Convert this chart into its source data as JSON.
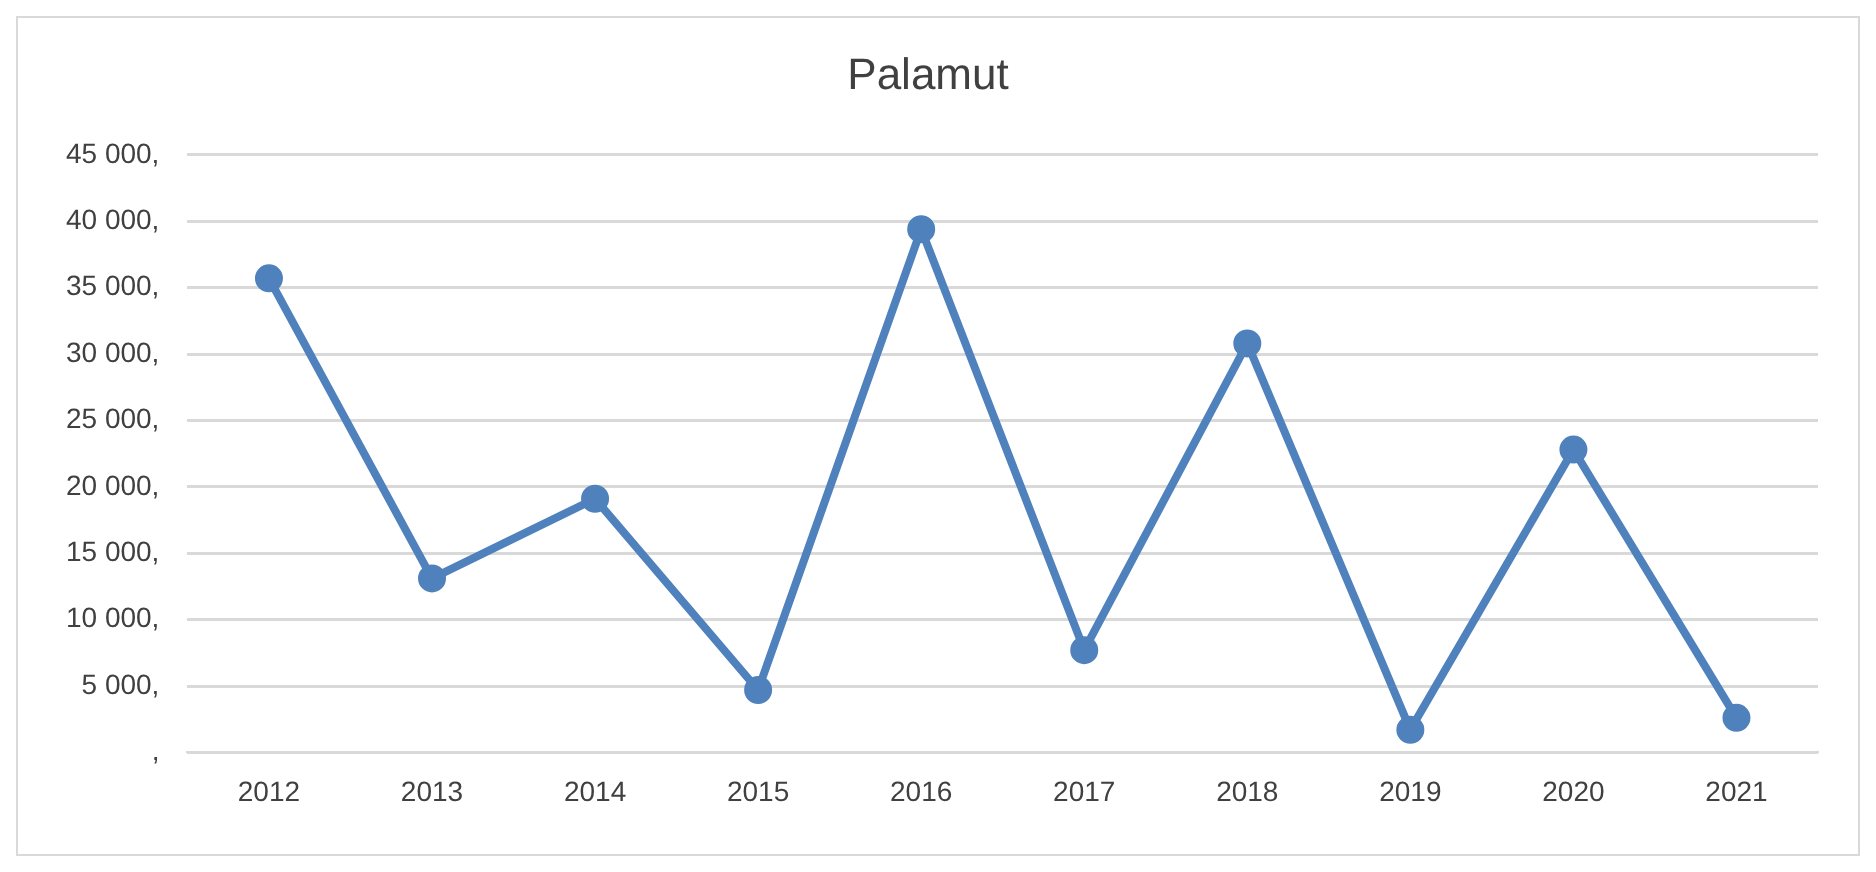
{
  "chart_data": {
    "type": "line",
    "title": "Palamut",
    "categories": [
      "2012",
      "2013",
      "2014",
      "2015",
      "2016",
      "2017",
      "2018",
      "2019",
      "2020",
      "2021"
    ],
    "series": [
      {
        "color": "#4f81bd",
        "values": [
          35700,
          13100,
          19100,
          4700,
          39400,
          7700,
          30800,
          1700,
          22800,
          2600
        ]
      }
    ],
    "ylim": [
      0,
      45000
    ],
    "yticks": [
      {
        "value": 0,
        "label": ","
      },
      {
        "value": 5000,
        "label": "5 000,"
      },
      {
        "value": 10000,
        "label": "10 000,"
      },
      {
        "value": 15000,
        "label": "15 000,"
      },
      {
        "value": 20000,
        "label": "20 000,"
      },
      {
        "value": 25000,
        "label": "25 000,"
      },
      {
        "value": 30000,
        "label": "30 000,"
      },
      {
        "value": 35000,
        "label": "35 000,"
      },
      {
        "value": 40000,
        "label": "40 000,"
      },
      {
        "value": 45000,
        "label": "45 000,"
      }
    ],
    "grid": "y",
    "legend": false,
    "marker": "circle",
    "line_style": "solid"
  }
}
